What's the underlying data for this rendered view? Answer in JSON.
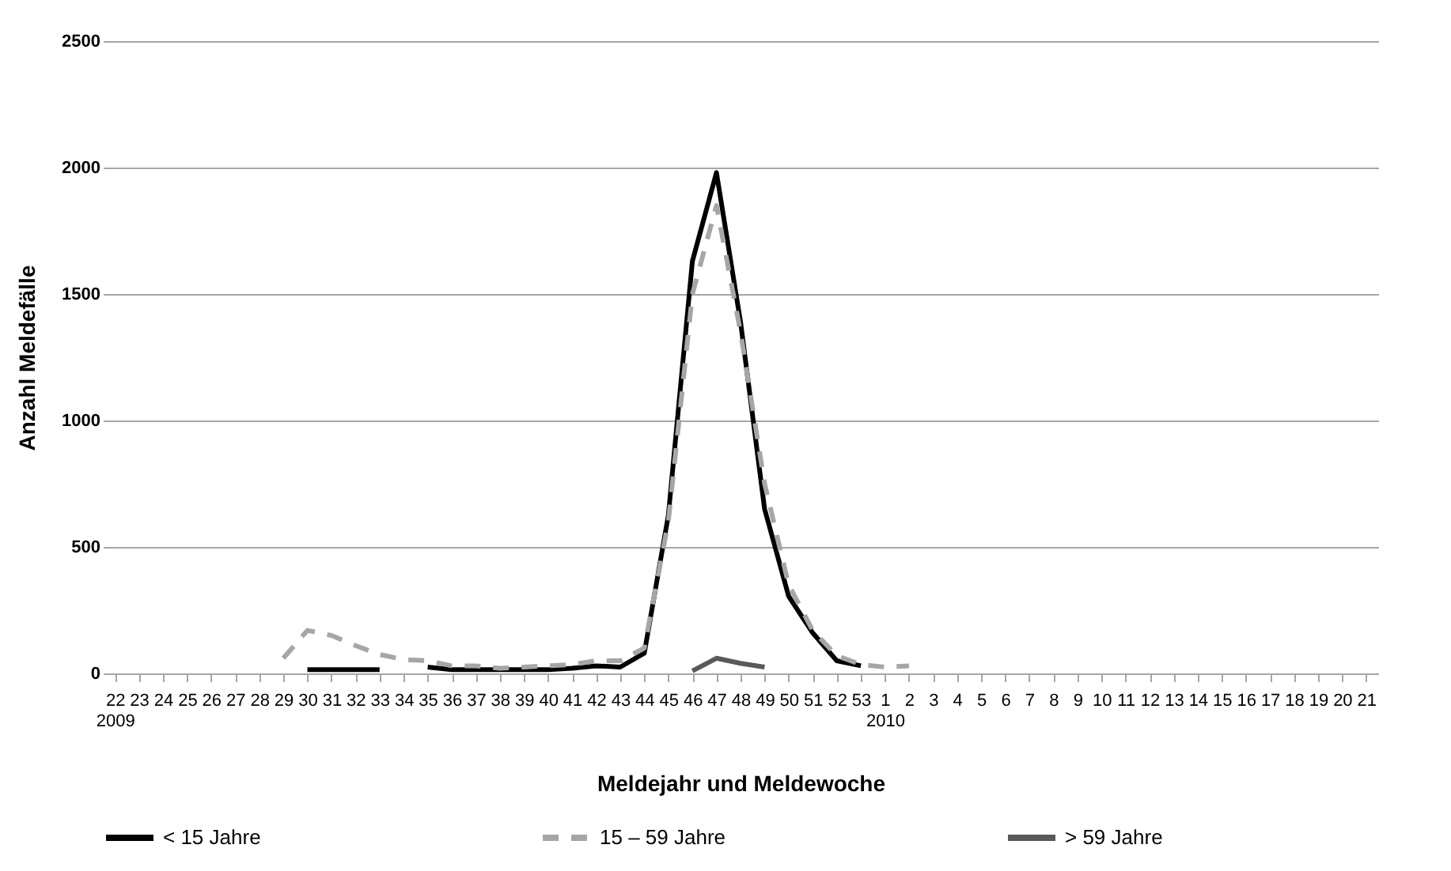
{
  "chart_data": {
    "type": "line",
    "xlabel": "Meldejahr und Meldewoche",
    "ylabel": "Anzahl Meldefälle",
    "categories": [
      "22\n2009",
      "23",
      "24",
      "25",
      "26",
      "27",
      "28",
      "29",
      "30",
      "31",
      "32",
      "33",
      "34",
      "35",
      "36",
      "37",
      "38",
      "39",
      "40",
      "41",
      "42",
      "43",
      "44",
      "45",
      "46",
      "47",
      "48",
      "49",
      "50",
      "51",
      "52",
      "53",
      "1\n2010",
      "2",
      "3",
      "4",
      "5",
      "6",
      "7",
      "8",
      "9",
      "10",
      "11",
      "12",
      "13",
      "14",
      "15",
      "16",
      "17",
      "18",
      "19",
      "20",
      "21"
    ],
    "series": [
      {
        "name": "< 15 Jahre",
        "color": "#000000",
        "line_style": "solid",
        "values": [
          null,
          null,
          null,
          null,
          null,
          null,
          null,
          null,
          15,
          15,
          15,
          15,
          null,
          25,
          15,
          15,
          15,
          15,
          15,
          20,
          30,
          25,
          80,
          625,
          1630,
          1980,
          1390,
          650,
          305,
          160,
          50,
          30,
          null,
          null,
          null,
          null,
          null,
          null,
          null,
          null,
          null,
          null,
          null,
          null,
          null,
          null,
          null,
          null,
          null,
          null,
          null,
          null,
          null
        ]
      },
      {
        "name": "15 – 59 Jahre",
        "color": "#a6a6a6",
        "line_style": "dashed",
        "values": [
          null,
          null,
          null,
          null,
          null,
          null,
          null,
          60,
          170,
          150,
          110,
          75,
          55,
          50,
          30,
          30,
          20,
          25,
          30,
          35,
          50,
          50,
          100,
          600,
          1500,
          1850,
          1350,
          750,
          350,
          170,
          70,
          35,
          25,
          30,
          null,
          null,
          null,
          null,
          null,
          null,
          null,
          null,
          null,
          null,
          null,
          null,
          null,
          null,
          null,
          null,
          null,
          null,
          null
        ]
      },
      {
        "name": "> 59 Jahre",
        "color": "#595959",
        "line_style": "solid",
        "values": [
          null,
          null,
          null,
          null,
          null,
          null,
          null,
          null,
          null,
          null,
          null,
          null,
          null,
          null,
          null,
          null,
          null,
          null,
          null,
          null,
          null,
          null,
          null,
          null,
          10,
          60,
          40,
          25,
          null,
          null,
          null,
          null,
          null,
          null,
          null,
          null,
          null,
          null,
          null,
          null,
          null,
          null,
          null,
          null,
          null,
          null,
          null,
          null,
          null,
          null,
          null,
          null,
          null
        ]
      }
    ],
    "ylim": [
      0,
      2500
    ],
    "yticks": [
      0,
      500,
      1000,
      1500,
      2000,
      2500
    ],
    "grid": "y",
    "legend": "bottom"
  }
}
